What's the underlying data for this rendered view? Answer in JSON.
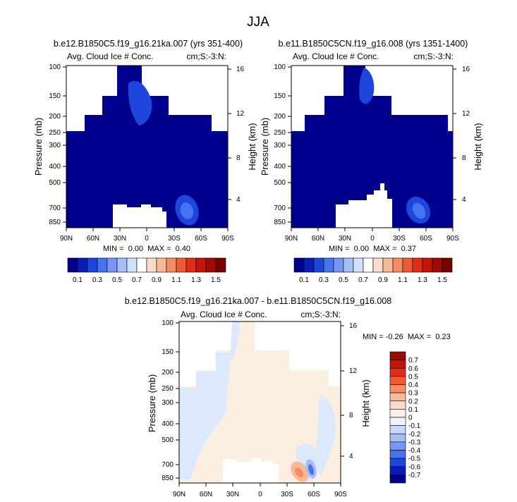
{
  "title": "JJA",
  "panels": [
    {
      "id": "p1",
      "title": "b.e12.B1850C5.f19_g16.21ka.007 (yrs 351-400)",
      "left_label": "Avg. Cloud Ice # Conc.",
      "right_label": "cm;S:-3:N:",
      "stats": "MIN =  0.00  MAX =  0.40"
    },
    {
      "id": "p2",
      "title": "b.e11.B1850C5CN.f19_g16.008 (yrs 1351-1400)",
      "left_label": "Avg. Cloud Ice # Conc.",
      "right_label": "cm;S:-3:N:",
      "stats": "MIN =  0.00  MAX =  0.37"
    },
    {
      "id": "p3",
      "title": "b.e12.B1850C5.f19_g16.21ka.007 - b.e11.B1850C5CN.f19_g16.008",
      "left_label": "Avg. Cloud Ice # Conc.",
      "right_label": "cm;S:-3:N:",
      "stats": "MIN = -0.26  MAX =  0.23"
    }
  ],
  "axes": {
    "xlabel": "",
    "ylabel": "Pressure (mb)",
    "y2label": "Height (km)",
    "xticks": [
      "90N",
      "60N",
      "30N",
      "0",
      "30S",
      "60S",
      "90S"
    ],
    "yticks": [
      "100",
      "150",
      "200",
      "250",
      "300",
      "400",
      "500",
      "700",
      "850"
    ],
    "y2ticks": [
      "16",
      "12",
      "8",
      "4"
    ]
  },
  "colorbar_abs": {
    "labels": [
      "0.1",
      "0.3",
      "0.5",
      "0.7",
      "0.9",
      "1.1",
      "1.3",
      "1.5"
    ],
    "colors": [
      "#00008c",
      "#0a1eb4",
      "#1e46dc",
      "#4673f0",
      "#7896f5",
      "#a5bef8",
      "#d2e1fa",
      "#ffffff",
      "#fadcc8",
      "#f8b998",
      "#f58c64",
      "#f05a37",
      "#e12d14",
      "#c31405",
      "#a00a00",
      "#780000"
    ]
  },
  "colorbar_diff": {
    "labels": [
      "0.7",
      "0.6",
      "0.5",
      "0.4",
      "0.3",
      "0.2",
      "0.1",
      "0",
      "-0.1",
      "-0.2",
      "-0.3",
      "-0.4",
      "-0.5",
      "-0.6",
      "-0.7"
    ],
    "colors": [
      "#a00a00",
      "#c31405",
      "#e12d14",
      "#f05a37",
      "#f58c64",
      "#f8b998",
      "#fadcc8",
      "#fff0e6",
      "#eef3ff",
      "#c8d7fa",
      "#a5bef8",
      "#7896f5",
      "#4673f0",
      "#1e46dc",
      "#0a1eb4",
      "#00008c"
    ]
  },
  "chart_data": [
    {
      "type": "heatmap",
      "title": "b.e12.B1850C5.f19_g16.21ka.007 (yrs 351-400)",
      "variable": "Avg. Cloud Ice # Conc.",
      "units": "cm;S:-3:N:",
      "x": [
        "90N",
        "60N",
        "30N",
        "0",
        "30S",
        "60S",
        "90S"
      ],
      "y_pressure_mb": [
        100,
        150,
        200,
        250,
        300,
        400,
        500,
        700,
        850
      ],
      "y2_height_km": [
        16,
        12,
        8,
        4
      ],
      "min": 0.0,
      "max": 0.4,
      "features": [
        {
          "description": "near-zero background (0-0.1)",
          "value": 0.05
        },
        {
          "description": "upper-tropospheric tongue near 10N-20S, 150-200 mb",
          "value": 0.2
        },
        {
          "description": "local maximum near 50S, 700 mb",
          "value": 0.4
        }
      ]
    },
    {
      "type": "heatmap",
      "title": "b.e11.B1850C5CN.f19_g16.008 (yrs 1351-1400)",
      "variable": "Avg. Cloud Ice # Conc.",
      "units": "cm;S:-3:N:",
      "x": [
        "90N",
        "60N",
        "30N",
        "0",
        "30S",
        "60S",
        "90S"
      ],
      "y_pressure_mb": [
        100,
        150,
        200,
        250,
        300,
        400,
        500,
        700,
        850
      ],
      "y2_height_km": [
        16,
        12,
        8,
        4
      ],
      "min": 0.0,
      "max": 0.37,
      "features": [
        {
          "description": "near-zero background (0-0.1)",
          "value": 0.05
        },
        {
          "description": "upper-tropospheric tongue near 10N-20S, 120-180 mb",
          "value": 0.2
        },
        {
          "description": "local maximum near 50S, 700 mb",
          "value": 0.37
        }
      ]
    },
    {
      "type": "heatmap",
      "title": "b.e12.B1850C5.f19_g16.21ka.007 - b.e11.B1850C5CN.f19_g16.008",
      "variable": "Avg. Cloud Ice # Conc.",
      "units": "cm;S:-3:N:",
      "x": [
        "90N",
        "60N",
        "30N",
        "0",
        "30S",
        "60S",
        "90S"
      ],
      "y_pressure_mb": [
        100,
        150,
        200,
        250,
        300,
        400,
        500,
        700,
        850
      ],
      "y2_height_km": [
        16,
        12,
        8,
        4
      ],
      "min": -0.26,
      "max": 0.23,
      "features": [
        {
          "description": "weak positive (0-0.1) over tropics/subtropics",
          "value": 0.05
        },
        {
          "description": "weak negative (-0.1-0) over 60N-90N and 60S",
          "value": -0.05
        },
        {
          "description": "positive dipole lobe near 40S, 750 mb",
          "value": 0.23
        },
        {
          "description": "negative dipole lobe near 55S, 750 mb",
          "value": -0.26
        }
      ]
    }
  ]
}
